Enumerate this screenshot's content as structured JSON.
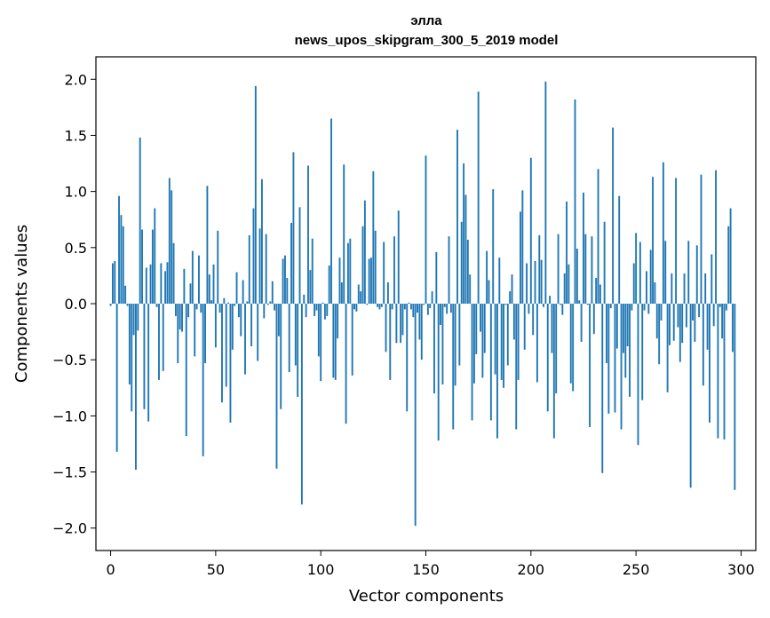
{
  "chart_data": {
    "type": "bar",
    "title": "элла",
    "subtitle": "news_upos_skipgram_300_5_2019 model",
    "xlabel": "Vector components",
    "ylabel": "Components values",
    "xlim": [
      -7,
      307
    ],
    "ylim": [
      -2.2,
      2.2
    ],
    "xticks": [
      0,
      50,
      100,
      150,
      200,
      250,
      300
    ],
    "yticks": [
      2.0,
      1.5,
      1.0,
      0.5,
      0.0,
      -0.5,
      -1.0,
      -1.5,
      -2.0
    ],
    "ytick_labels": [
      "2.0",
      "1.5",
      "1.0",
      "0.5",
      "0.0",
      "−0.5",
      "−1.0",
      "−1.5",
      "−2.0"
    ],
    "bar_color": "#1f77b4",
    "grid": false,
    "values": [
      -0.02,
      0.36,
      0.38,
      -1.32,
      0.96,
      0.79,
      0.69,
      0.16,
      -0.02,
      -0.72,
      -0.96,
      -0.28,
      -1.48,
      -0.24,
      1.48,
      0.66,
      -0.94,
      0.32,
      -1.05,
      0.35,
      0.66,
      0.85,
      -0.03,
      -0.68,
      0.36,
      -0.6,
      0.29,
      0.37,
      1.12,
      1.01,
      0.54,
      -0.11,
      -0.53,
      -0.23,
      -0.25,
      0.31,
      -1.18,
      -0.12,
      0.18,
      0.47,
      -0.47,
      -0.05,
      0.43,
      -0.08,
      -1.36,
      -0.53,
      1.05,
      0.26,
      0.03,
      0.35,
      -0.39,
      0.65,
      -0.08,
      -0.88,
      0.05,
      -0.74,
      0.01,
      -1.06,
      -0.41,
      -0.02,
      0.28,
      -0.12,
      -0.29,
      0.21,
      -0.63,
      0.02,
      0.61,
      -0.38,
      0.85,
      1.94,
      -0.51,
      0.67,
      1.11,
      -0.13,
      0.62,
      -0.01,
      0.02,
      0.2,
      -0.06,
      -1.47,
      -0.29,
      -0.94,
      0.4,
      0.43,
      0.23,
      -0.61,
      0.72,
      1.35,
      -0.55,
      -0.83,
      0.86,
      -1.79,
      0.08,
      -0.12,
      1.23,
      0.3,
      0.58,
      -0.11,
      -0.06,
      -0.47,
      -0.69,
      0.01,
      -0.14,
      -0.11,
      0.34,
      1.65,
      -0.66,
      -0.68,
      -0.31,
      0.41,
      0.19,
      1.24,
      -1.07,
      0.54,
      0.58,
      -0.64,
      -0.05,
      -0.07,
      0.17,
      0.11,
      0.69,
      0.92,
      -0.01,
      0.4,
      0.41,
      1.18,
      0.65,
      -0.03,
      -0.05,
      -0.03,
      0.55,
      -0.43,
      0.19,
      -0.68,
      -0.05,
      0.6,
      -0.35,
      0.83,
      -0.35,
      -0.28,
      -0.05,
      -0.96,
      0.01,
      -0.05,
      -0.12,
      -1.98,
      -0.08,
      -0.32,
      -0.5,
      -0.01,
      1.32,
      -0.1,
      -0.04,
      0.11,
      -0.8,
      0.46,
      -1.22,
      -0.19,
      -0.72,
      -0.03,
      -0.09,
      0.6,
      -0.08,
      -1.12,
      -0.73,
      1.55,
      -0.55,
      0.73,
      1.25,
      0.97,
      0.57,
      0.26,
      -1.04,
      -0.71,
      -0.45,
      1.89,
      -0.25,
      -0.66,
      -0.44,
      0.47,
      0.21,
      -1.04,
      1.02,
      -0.63,
      -1.2,
      0.41,
      -0.68,
      -0.75,
      -0.01,
      -0.55,
      0.11,
      0.26,
      -0.32,
      -1.12,
      -0.68,
      0.82,
      1.01,
      -0.41,
      0.36,
      -0.09,
      1.3,
      -0.28,
      0.38,
      -0.7,
      0.61,
      0.39,
      -0.03,
      1.98,
      -0.96,
      0.07,
      -0.44,
      -1.2,
      -0.8,
      0.62,
      -0.01,
      -0.1,
      0.27,
      0.91,
      0.35,
      -0.71,
      -0.78,
      1.82,
      0.49,
      0.03,
      -0.34,
      0.99,
      0.62,
      -0.01,
      -1.1,
      0.6,
      -0.27,
      0.23,
      1.2,
      0.17,
      -1.51,
      0.73,
      -0.53,
      -0.98,
      -0.04,
      1.57,
      -0.97,
      -0.4,
      0.96,
      -1.12,
      -0.44,
      -0.66,
      -0.38,
      -0.83,
      -0.06,
      0.36,
      0.63,
      -1.26,
      0.55,
      -0.86,
      -0.06,
      0.29,
      -0.09,
      0.48,
      1.13,
      0.19,
      -0.31,
      -0.54,
      -0.15,
      1.26,
      0.56,
      -0.79,
      -0.37,
      0.27,
      -0.33,
      1.12,
      -0.21,
      -0.52,
      -0.35,
      0.27,
      -0.21,
      0.56,
      -1.64,
      -0.15,
      -0.34,
      0.52,
      -0.12,
      1.15,
      -0.73,
      0.27,
      -0.41,
      -1.06,
      0.44,
      -0.2,
      1.19,
      -1.2,
      -0.03,
      -0.31,
      -1.21,
      -0.06,
      0.69,
      0.85,
      -0.43,
      -1.66
    ]
  }
}
